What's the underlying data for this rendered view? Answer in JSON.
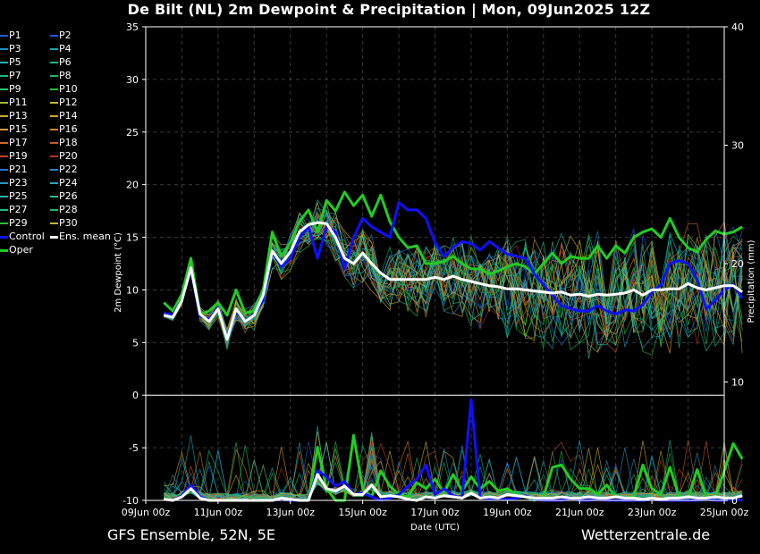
{
  "title": "De Bilt  (NL)  2m Dewpoint & Precipitation | Mon, 09Jun2025 12Z",
  "footer": {
    "left": "GFS Ensemble, 52N, 5E",
    "right": "Wetterzentrale.de"
  },
  "legend": [
    {
      "label": "P1",
      "color": "#1f5fdc"
    },
    {
      "label": "P2",
      "color": "#2058e8"
    },
    {
      "label": "P3",
      "color": "#1e90c8"
    },
    {
      "label": "P4",
      "color": "#1aa6b8"
    },
    {
      "label": "P5",
      "color": "#17b3b3"
    },
    {
      "label": "P6",
      "color": "#16b894"
    },
    {
      "label": "P7",
      "color": "#18bb86"
    },
    {
      "label": "P8",
      "color": "#1fb85a"
    },
    {
      "label": "P9",
      "color": "#22c46e"
    },
    {
      "label": "P10",
      "color": "#2ac02a"
    },
    {
      "label": "P11",
      "color": "#a3b52a"
    },
    {
      "label": "P12",
      "color": "#c9b636"
    },
    {
      "label": "P13",
      "color": "#d0aa30"
    },
    {
      "label": "P14",
      "color": "#d6a22a"
    },
    {
      "label": "P15",
      "color": "#d89a40"
    },
    {
      "label": "P16",
      "color": "#d57e2c"
    },
    {
      "label": "P17",
      "color": "#d26a26"
    },
    {
      "label": "P18",
      "color": "#cc5a22"
    },
    {
      "label": "P19",
      "color": "#c6471c"
    },
    {
      "label": "P20",
      "color": "#b8341a"
    },
    {
      "label": "P21",
      "color": "#2a70d8"
    },
    {
      "label": "P22",
      "color": "#2484c8"
    },
    {
      "label": "P23",
      "color": "#2a94c4"
    },
    {
      "label": "P24",
      "color": "#28a8c0"
    },
    {
      "label": "P25",
      "color": "#25b4a8"
    },
    {
      "label": "P26",
      "color": "#22b892"
    },
    {
      "label": "P27",
      "color": "#20bc7a"
    },
    {
      "label": "P28",
      "color": "#1eb85e"
    },
    {
      "label": "P29",
      "color": "#2cc03a"
    },
    {
      "label": "P30",
      "color": "#c8b428"
    },
    {
      "label": "Control",
      "color": "#1010ff"
    },
    {
      "label": "Ens. mean",
      "color": "#ffffff"
    },
    {
      "label": "Oper",
      "color": "#22cc22"
    }
  ],
  "chart_data": {
    "type": "line",
    "xlabel": "Date (UTC)",
    "ylabel": "2m Dewpoint (°C)",
    "y2label": "Precipitation (mm)",
    "ylim": [
      -10,
      35
    ],
    "y2lim": [
      0,
      40
    ],
    "yticks": [
      "35",
      "30",
      "25",
      "20",
      "15",
      "10",
      "5",
      "0",
      "-5",
      "-10"
    ],
    "y2ticks": [
      "40",
      "30",
      "20",
      "10",
      "0"
    ],
    "xticks": [
      "09Jun 00z",
      "11Jun 00z",
      "13Jun 00z",
      "15Jun 00z",
      "17Jun 00z",
      "19Jun 00z",
      "21Jun 00z",
      "23Jun 00z",
      "25Jun 00z"
    ],
    "x_start_hours_after_09Jun00z": 12,
    "x_step_hours": 6,
    "grid": true,
    "series": [
      {
        "name": "Control",
        "color": "#1010ff",
        "values": [
          7.8,
          7.6,
          9.0,
          12.0,
          7.5,
          7.2,
          8.3,
          5.4,
          8.0,
          7.0,
          7.7,
          9.0,
          13.6,
          12.2,
          13.0,
          15.0,
          16.0,
          13.0,
          16.0,
          15.5,
          12.0,
          15.0,
          16.8,
          16.0,
          15.5,
          15.0,
          18.3,
          17.6,
          17.6,
          16.8,
          14.5,
          13.2,
          14.0,
          14.6,
          14.4,
          13.8,
          14.6,
          14.0,
          13.4,
          13.2,
          13.0,
          11.5,
          10.5,
          9.5,
          8.5,
          8.2,
          8.0,
          8.0,
          8.5,
          8.0,
          7.7,
          8.1,
          8.0,
          8.6,
          9.8,
          10.5,
          12.5,
          12.8,
          12.5,
          11.0,
          8.2,
          9.0,
          10.0,
          10.5,
          9.2
        ]
      },
      {
        "name": "Ens. mean",
        "color": "#ffffff",
        "values": [
          7.6,
          7.4,
          9.0,
          12.1,
          7.7,
          7.0,
          8.2,
          5.3,
          8.2,
          7.0,
          7.6,
          9.5,
          13.7,
          12.5,
          13.6,
          15.5,
          16.2,
          16.4,
          16.3,
          15.0,
          13.0,
          12.5,
          13.5,
          12.5,
          11.6,
          11.0,
          11.0,
          11.0,
          11.0,
          11.0,
          11.2,
          11.0,
          11.3,
          11.0,
          10.8,
          10.6,
          10.4,
          10.3,
          10.1,
          10.1,
          10.0,
          9.9,
          9.8,
          9.7,
          9.8,
          9.5,
          9.6,
          9.4,
          9.6,
          9.5,
          9.6,
          9.7,
          10.0,
          9.5,
          10.0,
          10.0,
          10.1,
          10.1,
          10.6,
          10.2,
          10.0,
          10.2,
          10.4,
          10.4,
          9.8
        ]
      },
      {
        "name": "Oper",
        "color": "#22cc22",
        "values": [
          8.8,
          8.0,
          9.6,
          13.0,
          7.7,
          8.0,
          8.8,
          7.6,
          10.0,
          7.8,
          8.0,
          10.0,
          15.5,
          13.2,
          14.5,
          16.5,
          17.6,
          15.5,
          18.5,
          17.5,
          19.3,
          18.0,
          19.0,
          17.0,
          19.0,
          16.5,
          15.0,
          14.0,
          14.2,
          12.5,
          12.5,
          12.7,
          13.2,
          12.5,
          12.0,
          12.0,
          11.5,
          11.8,
          12.2,
          12.5,
          12.2,
          11.5,
          12.5,
          13.5,
          12.5,
          13.2,
          13.0,
          13.0,
          14.2,
          13.0,
          14.2,
          13.5,
          15.0,
          15.5,
          15.8,
          15.0,
          16.8,
          15.0,
          14.0,
          13.6,
          14.8,
          15.6,
          15.3,
          15.5,
          16.0
        ]
      }
    ],
    "precipitation": [
      {
        "name": "Control",
        "color": "#1010ff",
        "values": [
          0.1,
          0,
          0.4,
          1.3,
          0.3,
          0,
          0,
          0,
          0,
          0,
          0,
          0,
          0,
          0.1,
          0,
          0,
          0,
          2.5,
          2.0,
          1.2,
          1.6,
          0.5,
          0.6,
          0.3,
          0,
          0.2,
          0.5,
          1.2,
          1.8,
          3.0,
          0.5,
          1.0,
          0.4,
          0.2,
          8.5,
          0.3,
          0.1,
          0.2,
          0.1,
          0.2,
          0.4,
          0.1,
          0,
          0,
          0,
          0.2,
          0,
          0,
          0.1,
          0,
          0,
          0,
          0,
          0,
          0.1,
          0,
          0,
          0,
          0,
          0,
          0.1,
          0,
          0,
          0.1,
          0
        ]
      },
      {
        "name": "Ens. mean",
        "color": "#ffffff",
        "values": [
          0.1,
          0,
          0.3,
          1.0,
          0.2,
          0,
          0,
          0,
          0,
          0,
          0,
          0,
          0,
          0.2,
          0.1,
          0,
          0,
          2.2,
          1.0,
          0.8,
          1.2,
          0.5,
          0.5,
          1.3,
          0.3,
          0.4,
          0.3,
          0.1,
          0,
          0.3,
          0.2,
          0.4,
          0.3,
          0.2,
          0.6,
          0.2,
          0.3,
          0.2,
          0.5,
          0.4,
          0.3,
          0.2,
          0.2,
          0.2,
          0.3,
          0.2,
          0.2,
          0.3,
          0.2,
          0.2,
          0.3,
          0.2,
          0.2,
          0.1,
          0.2,
          0.1,
          0.2,
          0.2,
          0.3,
          0.2,
          0.2,
          0.3,
          0.2,
          0.2,
          0.4
        ]
      },
      {
        "name": "Oper",
        "color": "#22cc22",
        "values": [
          0.2,
          0,
          0.3,
          1.2,
          0.2,
          0,
          0,
          0,
          0,
          0,
          0,
          0,
          0,
          0.1,
          0,
          0,
          0,
          4.5,
          1.0,
          0,
          0,
          5.5,
          1.0,
          0.3,
          2.5,
          1.2,
          0.5,
          0.3,
          1.5,
          1.0,
          1.8,
          0.6,
          2.2,
          0.8,
          2.0,
          1.0,
          1.6,
          0.8,
          1.0,
          0.5,
          0.3,
          0,
          0.3,
          2.8,
          3.0,
          1.8,
          1.0,
          1.0,
          0.5,
          1.3,
          0.3,
          0.2,
          0.3,
          3.0,
          1.0,
          0.5,
          2.8,
          0.3,
          0.2,
          2.6,
          0.3,
          0.2,
          2.5,
          4.8,
          3.5
        ]
      }
    ]
  }
}
